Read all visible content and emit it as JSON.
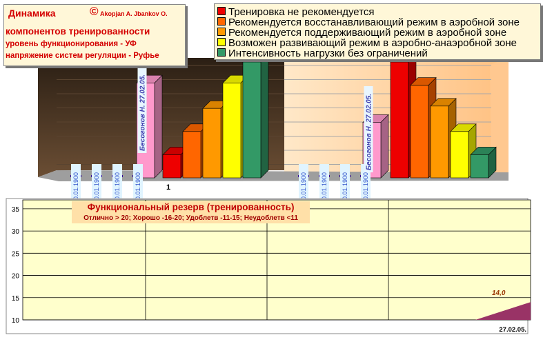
{
  "title": {
    "line1": "Динамика",
    "copyright": "©",
    "authors": "Akopjan A. Jbankov O.",
    "line2": "компонентов тренированности",
    "line3": "уровень функционирования - УФ",
    "line4": "напряжение систем регуляции - Руфье"
  },
  "legend": [
    {
      "label": "Тренировка не рекомендуется",
      "color": "#ee0000"
    },
    {
      "label": "Рекомендуется восстанавливающий режим в аэробной зоне",
      "color": "#ff6600"
    },
    {
      "label": "Рекомендуется поддерживающий режим в аэробной зоне",
      "color": "#ff9900"
    },
    {
      "label": "Возможен развивающий режим в аэробно-анаэробной зоне",
      "color": "#ffff00"
    },
    {
      "label": "Интенсивность нагрузки без ограничений",
      "color": "#339966"
    }
  ],
  "chart_data": [
    {
      "type": "bar",
      "categories": [
        "1",
        ""
      ],
      "groups": [
        {
          "category": "1",
          "date_labels": [
            "00.01.1900",
            "00.01.1900",
            "00.01.1900",
            "00.01.1900"
          ],
          "person_label": "Бесогонов Н. 27.02.05.",
          "person_value": 0.82,
          "zone_values": [
            0.2,
            0.4,
            0.6,
            0.82,
            1.0
          ]
        },
        {
          "category": "",
          "date_labels": [
            "00.01.1900",
            "00.01.1900",
            "00.01.1900",
            "00.01.1900"
          ],
          "person_label": "Бесогонов Н. 27.02.05.",
          "person_value": 0.48,
          "zone_values": [
            1.0,
            0.8,
            0.62,
            0.4,
            0.2
          ]
        }
      ],
      "colors": {
        "person": "#ff99cc",
        "marker": "#330099",
        "wall": "#3a2a1a",
        "wall_right": "#ffd3a0"
      }
    },
    {
      "type": "area",
      "title": "Функциональный резерв (тренированность)",
      "subtitle": "Отлично > 20;  Хорошо -16-20;  Удоблетв -11-15;  Неудоблетв <11",
      "y_ticks": [
        "35",
        "30",
        "25",
        "20",
        "15",
        "10"
      ],
      "ylim": [
        10,
        37
      ],
      "x_label": "27.02.05.",
      "series": [
        {
          "values": [
            10,
            14
          ]
        }
      ],
      "data_label": "14,0",
      "grid": true,
      "colors": {
        "area": "#993366",
        "label": "#993300"
      }
    }
  ]
}
